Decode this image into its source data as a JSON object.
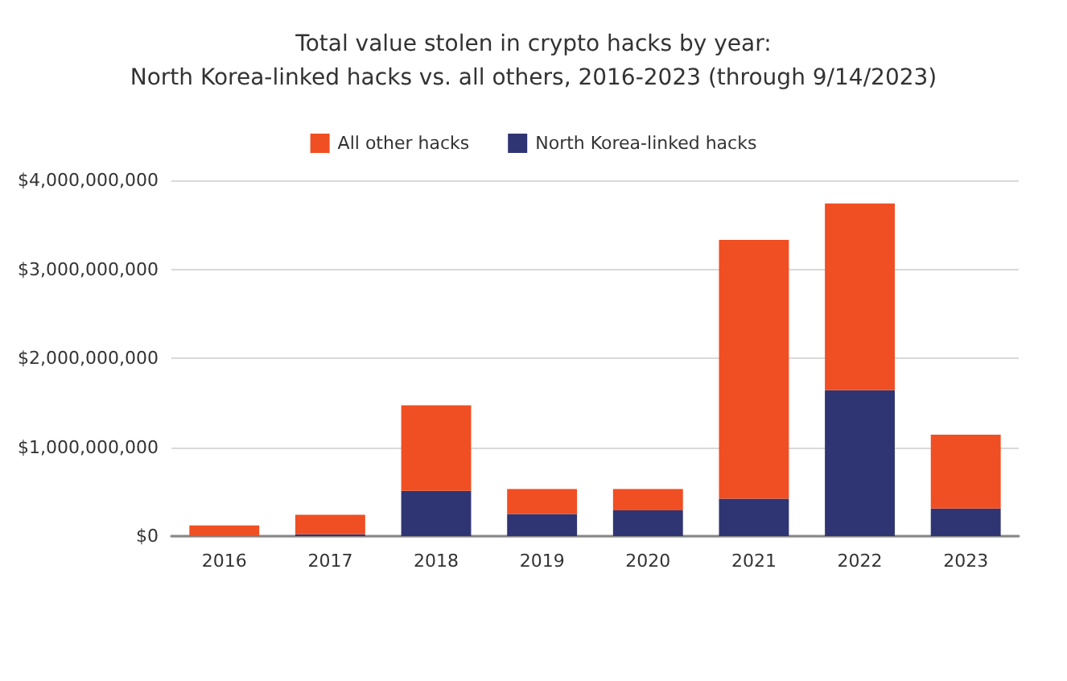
{
  "chart_data": {
    "type": "bar",
    "title": "Total value stolen in crypto hacks by year:\nNorth Korea-linked hacks vs. all others, 2016-2023 (through 9/14/2023)",
    "categories": [
      "2016",
      "2017",
      "2018",
      "2019",
      "2020",
      "2021",
      "2022",
      "2023"
    ],
    "stacked": true,
    "series": [
      {
        "name": "North Korea-linked hacks",
        "color": "#2f3573",
        "values": [
          0,
          20000000,
          510000000,
          250000000,
          290000000,
          420000000,
          1640000000,
          310000000
        ]
      },
      {
        "name": "All other hacks",
        "color": "#f04e23",
        "values": [
          120000000,
          220000000,
          960000000,
          280000000,
          240000000,
          2910000000,
          2100000000,
          830000000
        ]
      }
    ],
    "ylim": [
      0,
      4000000000
    ],
    "yticks": [
      {
        "value": 0,
        "label": "$0"
      },
      {
        "value": 1000000000,
        "label": "$1,000,000,000"
      },
      {
        "value": 2000000000,
        "label": "$2,000,000,000"
      },
      {
        "value": 3000000000,
        "label": "$3,000,000,000"
      },
      {
        "value": 4000000000,
        "label": "$4,000,000,000"
      }
    ],
    "grid": "y",
    "legend": "top"
  }
}
